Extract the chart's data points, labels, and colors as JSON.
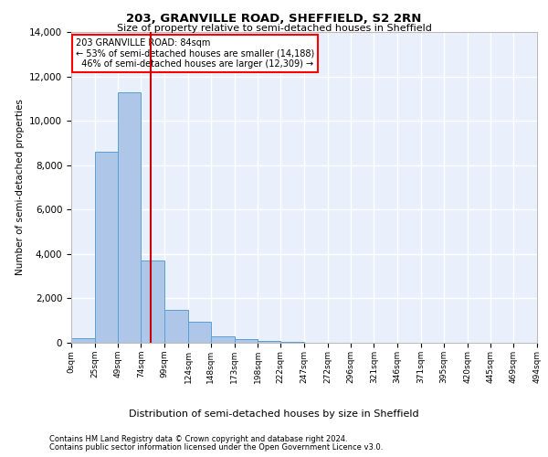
{
  "title": "203, GRANVILLE ROAD, SHEFFIELD, S2 2RN",
  "subtitle": "Size of property relative to semi-detached houses in Sheffield",
  "xlabel": "Distribution of semi-detached houses by size in Sheffield",
  "ylabel": "Number of semi-detached properties",
  "property_label": "203 GRANVILLE ROAD: 84sqm",
  "pct_smaller": 53,
  "pct_larger": 46,
  "n_smaller": 14188,
  "n_larger": 12309,
  "vline_x": 84,
  "bin_edges": [
    0,
    25,
    49,
    74,
    99,
    124,
    148,
    173,
    198,
    222,
    247,
    272,
    296,
    321,
    346,
    371,
    395,
    420,
    445,
    469,
    494
  ],
  "bar_heights": [
    200,
    8600,
    11300,
    3700,
    1500,
    950,
    300,
    150,
    80,
    30,
    10,
    5,
    0,
    0,
    0,
    0,
    0,
    0,
    0,
    0
  ],
  "bar_color": "#aec6e8",
  "bar_edge_color": "#5a9fd4",
  "vline_color": "#cc0000",
  "footnote1": "Contains HM Land Registry data © Crown copyright and database right 2024.",
  "footnote2": "Contains public sector information licensed under the Open Government Licence v3.0.",
  "ylim": [
    0,
    14000
  ],
  "yticks": [
    0,
    2000,
    4000,
    6000,
    8000,
    10000,
    12000,
    14000
  ],
  "bg_color": "#eaf0fb",
  "grid_color": "#ffffff"
}
